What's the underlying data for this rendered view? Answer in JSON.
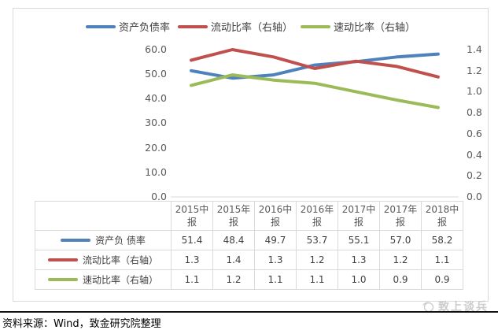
{
  "legend": {
    "items": [
      {
        "label": "资产负债率",
        "color": "#4F81BD"
      },
      {
        "label": "流动比率（右轴）",
        "color": "#C0504D"
      },
      {
        "label": "速动比率（右轴）",
        "color": "#9BBB59"
      }
    ]
  },
  "chart_data": {
    "type": "line",
    "categories": [
      "2015中报",
      "2015年报",
      "2016中报",
      "2016年报",
      "2017中报",
      "2017年报",
      "2018中报"
    ],
    "series": [
      {
        "name": "资产负债率",
        "axis": "left",
        "color": "#4F81BD",
        "values": [
          51.4,
          48.4,
          49.7,
          53.7,
          55.1,
          57.0,
          58.2
        ],
        "plot_values": [
          51.4,
          48.4,
          49.7,
          53.7,
          55.1,
          57.0,
          58.2
        ]
      },
      {
        "name": "流动比率（右轴）",
        "axis": "right",
        "color": "#C0504D",
        "values": [
          1.3,
          1.4,
          1.3,
          1.2,
          1.3,
          1.2,
          1.1
        ],
        "plot_values": [
          1.3,
          1.4,
          1.33,
          1.22,
          1.29,
          1.24,
          1.14
        ]
      },
      {
        "name": "速动比率（右轴）",
        "axis": "right",
        "color": "#9BBB59",
        "values": [
          1.1,
          1.2,
          1.1,
          1.1,
          1.0,
          0.9,
          0.9
        ],
        "plot_values": [
          1.06,
          1.16,
          1.11,
          1.08,
          1.0,
          0.92,
          0.85
        ]
      }
    ],
    "left_axis": {
      "min": 0,
      "max": 60,
      "ticks": [
        "60.0",
        "50.0",
        "40.0",
        "30.0",
        "20.0",
        "10.0",
        "0.0"
      ]
    },
    "right_axis": {
      "min": 0,
      "max": 1.4,
      "ticks": [
        "1.4",
        "1.2",
        "1.0",
        "0.8",
        "0.6",
        "0.4",
        "0.2",
        "0.0"
      ]
    },
    "legend_position": "top",
    "grid": false,
    "axis_line_color": "#d9d9d9"
  },
  "table": {
    "headers": [
      "2015中报",
      "2015年报",
      "2016中报",
      "2016年报",
      "2017中报",
      "2017年报",
      "2018中报"
    ],
    "rows": [
      {
        "label": "资产负 债率",
        "color": "#4F81BD",
        "values": [
          "51.4",
          "48.4",
          "49.7",
          "53.7",
          "55.1",
          "57.0",
          "58.2"
        ]
      },
      {
        "label": "流动比率（右轴）",
        "color": "#C0504D",
        "values": [
          "1.3",
          "1.4",
          "1.3",
          "1.2",
          "1.3",
          "1.2",
          "1.1"
        ]
      },
      {
        "label": "速动比率（右轴）",
        "color": "#9BBB59",
        "values": [
          "1.1",
          "1.2",
          "1.1",
          "1.1",
          "1.0",
          "0.9",
          "0.9"
        ]
      }
    ]
  },
  "watermark": {
    "text": "致上谈兵"
  },
  "footer": {
    "source": "资料来源：Wind，致金研究院整理"
  }
}
